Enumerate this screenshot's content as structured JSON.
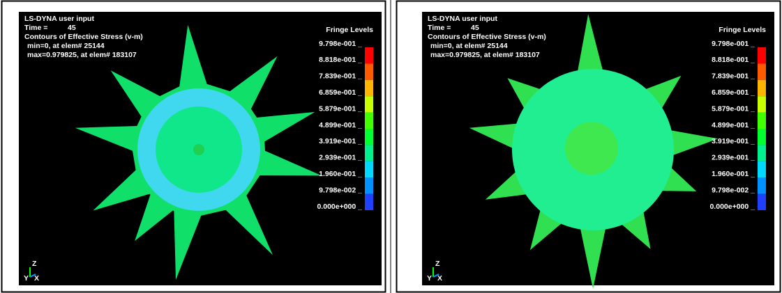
{
  "panels": [
    {
      "header": {
        "program": "LS-DYNA user input",
        "time_label": "Time =",
        "time_value": "45",
        "contour": "Contours of Effective Stress (v-m)",
        "min": "min=0, at elem# 25144",
        "max": "max=0.979825, at elem# 183107"
      },
      "fringe": {
        "title": "Fringe Levels",
        "labels": [
          "9.798e-001 _",
          "8.818e-001 _",
          "7.839e-001 _",
          "6.859e-001 _",
          "5.879e-001 _",
          "4.899e-001 _",
          "3.919e-001 _",
          "2.939e-001 _",
          "1.960e-001 _",
          "9.798e-002 _",
          "0.000e+000 _"
        ],
        "colors": [
          "#ff0000",
          "#ff5a00",
          "#ffb400",
          "#c8ff00",
          "#40ff00",
          "#00ff30",
          "#00f090",
          "#00d8ff",
          "#0090ff",
          "#2040ff"
        ]
      },
      "axes": {
        "z": "Z",
        "y": "Y",
        "x": "X"
      }
    },
    {
      "header": {
        "program": "LS-DYNA user input",
        "time_label": "Time =",
        "time_value": "45",
        "contour": "Contours of Effective Stress (v-m)",
        "min": "min=0, at elem# 25144",
        "max": "max=0.979825, at elem# 183107"
      },
      "fringe": {
        "title": "Fringe Levels",
        "labels": [
          "9.798e-001 _",
          "8.818e-001 _",
          "7.839e-001 _",
          "6.859e-001 _",
          "5.879e-001 _",
          "4.899e-001 _",
          "3.919e-001 _",
          "2.939e-001 _",
          "1.960e-001 _",
          "9.798e-002 _",
          "0.000e+000 _"
        ],
        "colors": [
          "#ff0000",
          "#ff5a00",
          "#ffb400",
          "#c8ff00",
          "#40ff00",
          "#00ff30",
          "#00f090",
          "#00d8ff",
          "#0090ff",
          "#2040ff"
        ]
      },
      "axes": {
        "z": "Z",
        "y": "Y",
        "x": "X"
      }
    }
  ]
}
